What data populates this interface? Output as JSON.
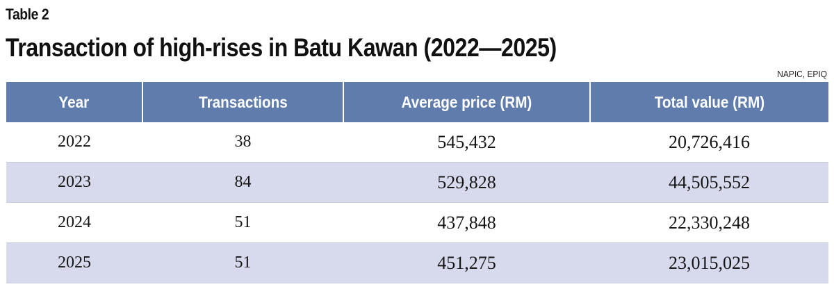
{
  "kicker": "Table 2",
  "title": "Transaction of high-rises in Batu Kawan (2022—2025)",
  "source": "NAPIC, EPIQ",
  "colors": {
    "header_bg": "#5f7cad",
    "header_text": "#ffffff",
    "stripe_bg": "#d7d9ec",
    "plain_bg": "#ffffff"
  },
  "chart_data": {
    "type": "table",
    "title": "Transaction of high-rises in Batu Kawan (2022—2025)",
    "columns": [
      "Year",
      "Transactions",
      "Average price (RM)",
      "Total value (RM)"
    ],
    "rows": [
      [
        "2022",
        "38",
        "545,432",
        "20,726,416"
      ],
      [
        "2023",
        "84",
        "529,828",
        "44,505,552"
      ],
      [
        "2024",
        "51",
        "437,848",
        "22,330,248"
      ],
      [
        "2025",
        "51",
        "451,275",
        "23,015,025"
      ]
    ]
  }
}
